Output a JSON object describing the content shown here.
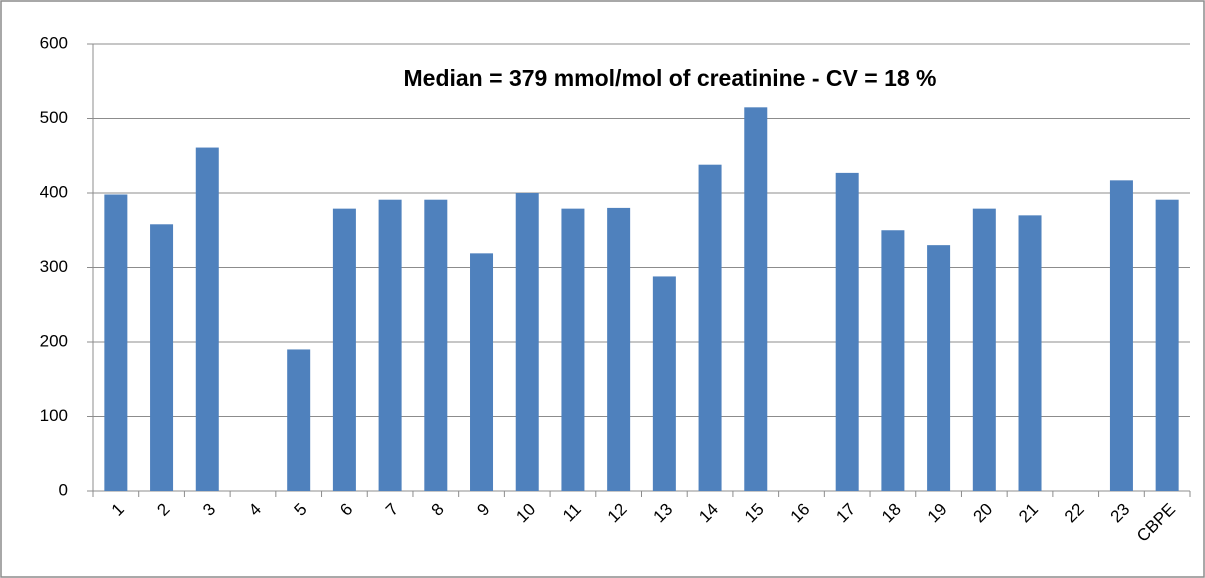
{
  "chart_data": {
    "type": "bar",
    "annotation": "Median = 379 mmol/mol of creatinine - CV =  18 %",
    "categories": [
      "1",
      "2",
      "3",
      "4",
      "5",
      "6",
      "7",
      "8",
      "9",
      "10",
      "11",
      "12",
      "13",
      "14",
      "15",
      "16",
      "17",
      "18",
      "19",
      "20",
      "21",
      "22",
      "23",
      "CBPE"
    ],
    "values": [
      398,
      358,
      461,
      null,
      190,
      379,
      391,
      391,
      319,
      400,
      379,
      380,
      288,
      438,
      515,
      null,
      427,
      350,
      330,
      379,
      370,
      null,
      417,
      391
    ],
    "color": "#4f81bd",
    "ylim": [
      0,
      600
    ],
    "yticks": [
      0,
      100,
      200,
      300,
      400,
      500,
      600
    ],
    "grid": true
  }
}
